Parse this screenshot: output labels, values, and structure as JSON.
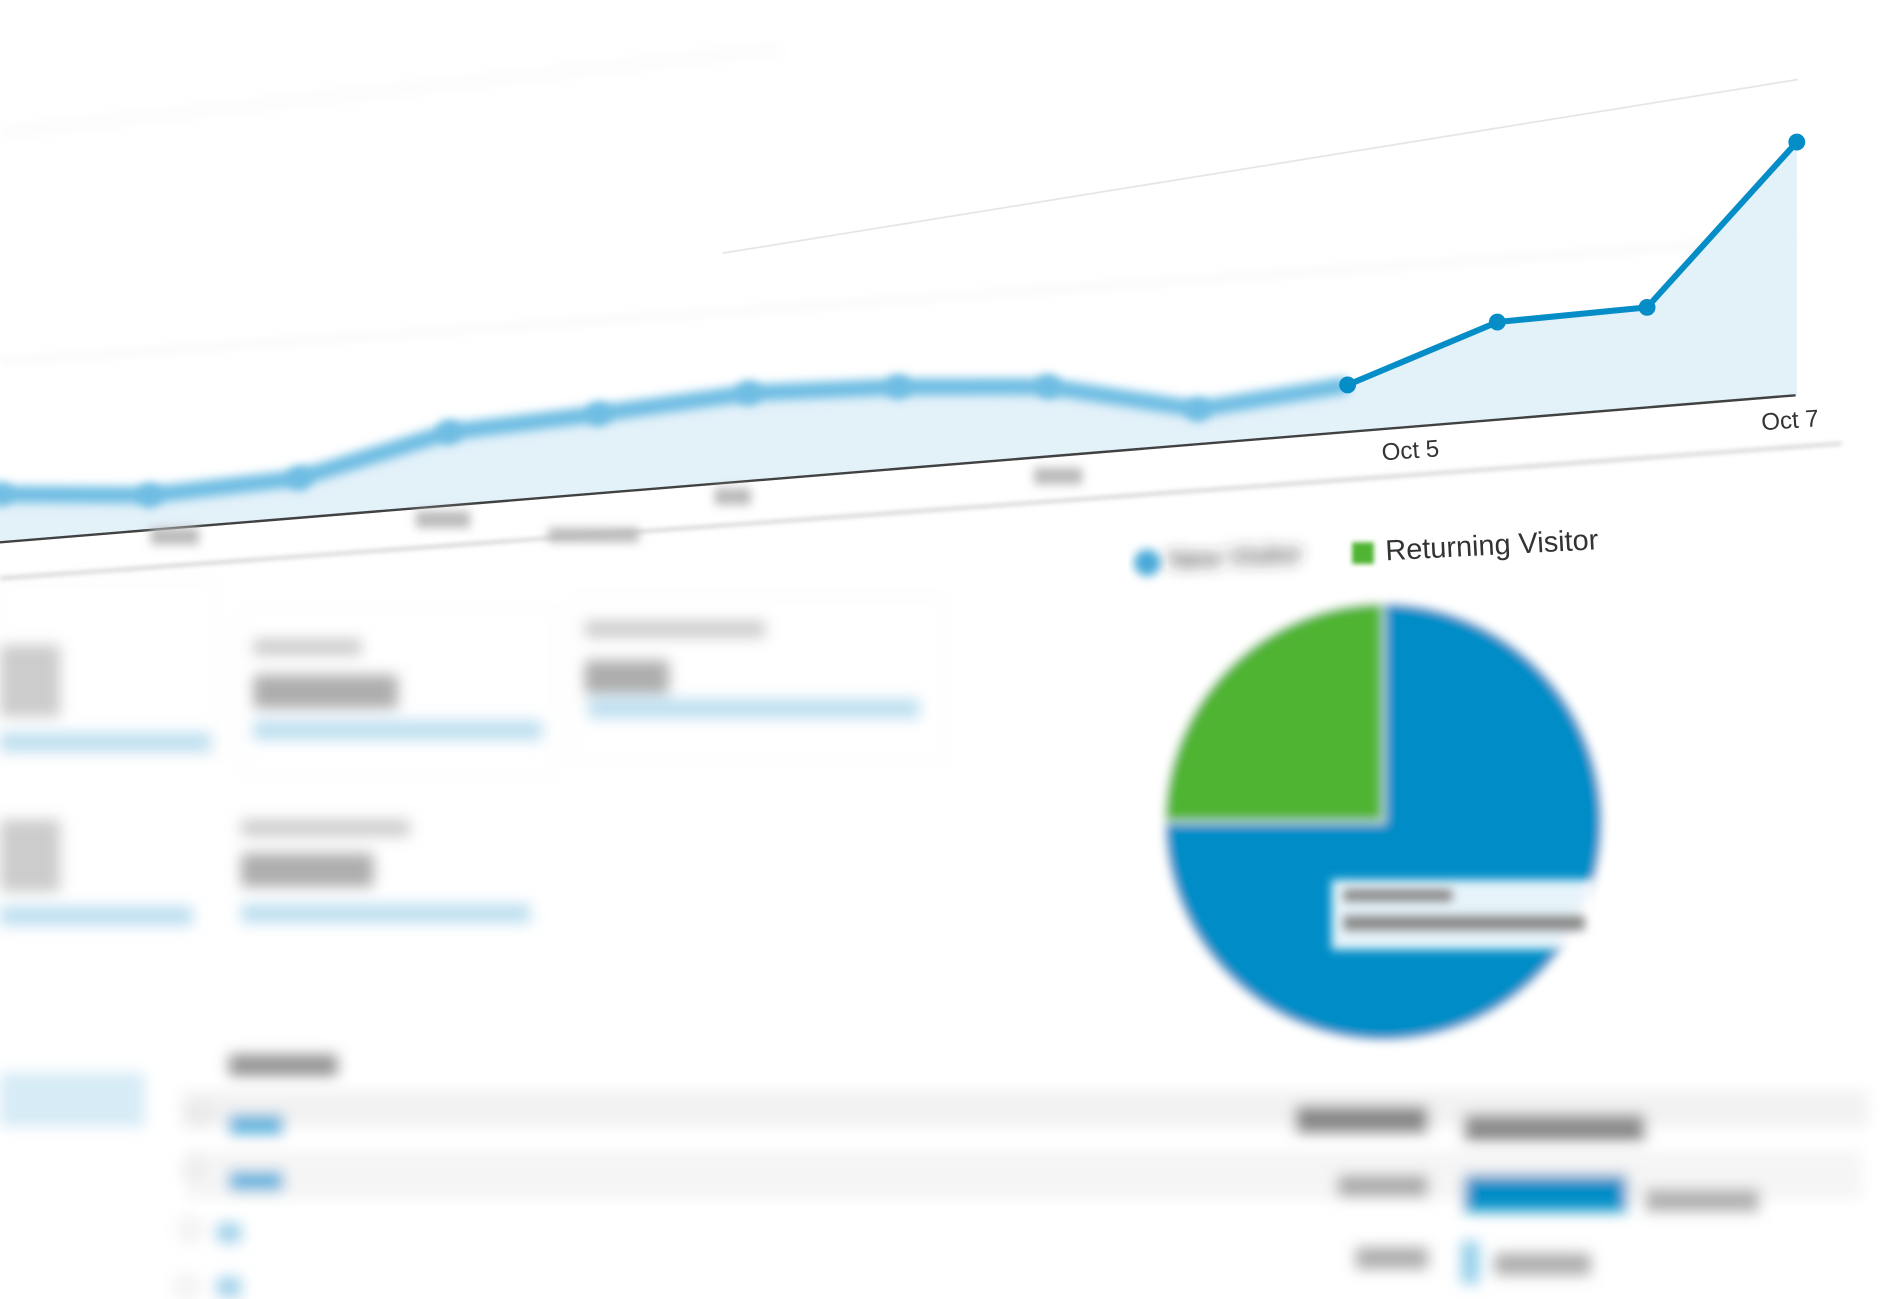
{
  "colors": {
    "new_visitor": "#058dc7",
    "returning_visitor": "#50b432",
    "area_fill": "#e3f1f9",
    "line": "#058dc7"
  },
  "chart_data": [
    {
      "type": "area",
      "x": [
        "Sep 25",
        "Sep 26",
        "Sep 27",
        "Sep 28",
        "Sep 29",
        "Sep 30",
        "Oct 1",
        "Oct 2",
        "Oct 3",
        "Oct 4",
        "Oct 5",
        "Oct 6",
        "Oct 7"
      ],
      "values": [
        40,
        29,
        33,
        61,
        66,
        73,
        68,
        58,
        29,
        39,
        81,
        83,
        210
      ],
      "tick_labels": [
        "Oct 5",
        "Oct 7"
      ],
      "grid": true,
      "markers": true
    },
    {
      "type": "pie",
      "legend": [
        "New Visitor",
        "Returning Visitor"
      ],
      "legend_placement": "top",
      "values": [
        75,
        25
      ]
    }
  ]
}
